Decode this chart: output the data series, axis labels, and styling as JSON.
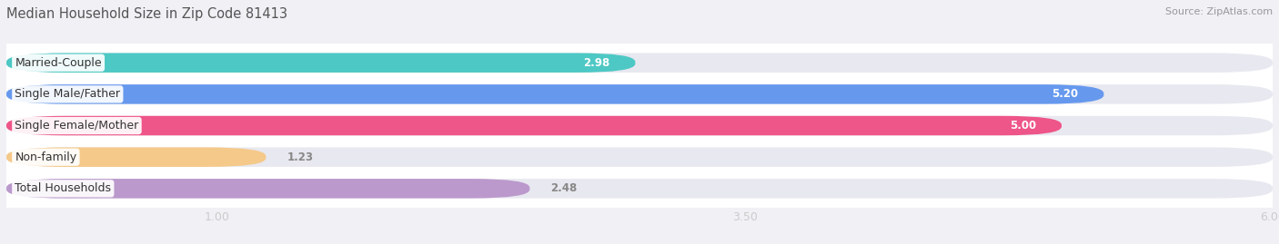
{
  "title": "Median Household Size in Zip Code 81413",
  "source": "Source: ZipAtlas.com",
  "categories": [
    "Married-Couple",
    "Single Male/Father",
    "Single Female/Mother",
    "Non-family",
    "Total Households"
  ],
  "values": [
    2.98,
    5.2,
    5.0,
    1.23,
    2.48
  ],
  "bar_colors": [
    "#4dc8c4",
    "#6699ee",
    "#ee5588",
    "#f5c98a",
    "#bb99cc"
  ],
  "xmin": 0.0,
  "xmax": 6.0,
  "xticks": [
    1.0,
    3.5,
    6.0
  ],
  "value_labels": [
    "2.98",
    "5.20",
    "5.00",
    "1.23",
    "2.48"
  ],
  "title_fontsize": 10.5,
  "source_fontsize": 8,
  "tick_fontsize": 9,
  "cat_label_fontsize": 9,
  "val_label_fontsize": 8.5,
  "background_color": "#ffffff",
  "fig_bg_color": "#f0f0f5",
  "bar_bg_color": "#e8e8f0",
  "bar_height": 0.62,
  "bar_spacing": 1.0
}
